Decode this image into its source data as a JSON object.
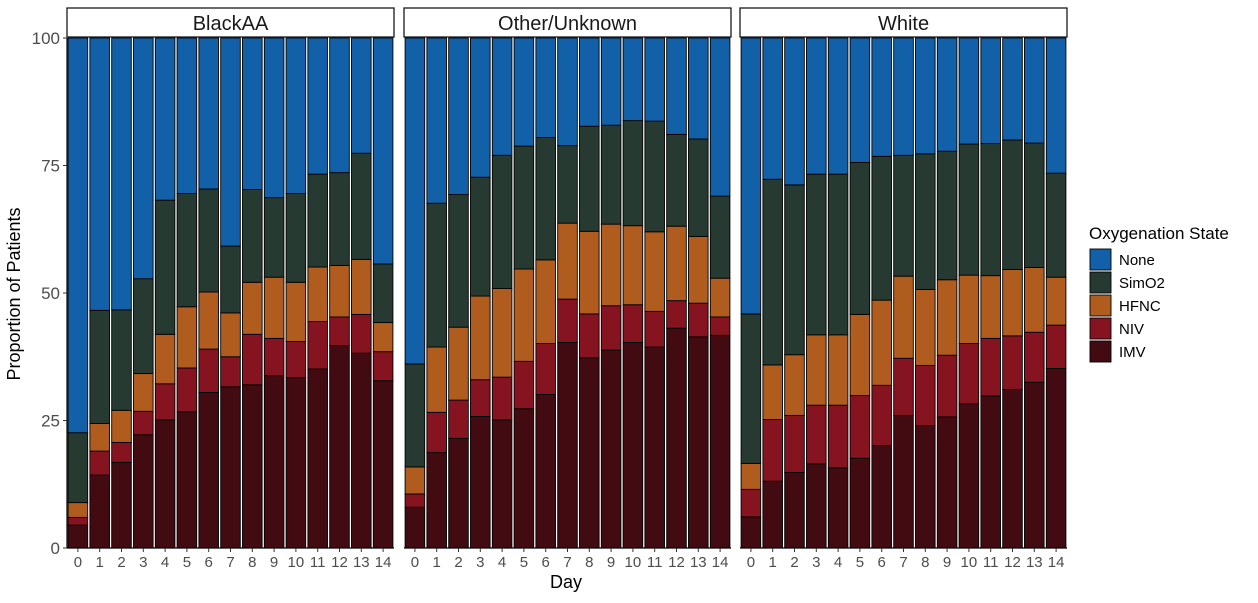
{
  "chart_data": {
    "type": "bar",
    "stacked": true,
    "facets": [
      "BlackAA",
      "Other/Unknown",
      "White"
    ],
    "categories": [
      "0",
      "1",
      "2",
      "3",
      "4",
      "5",
      "6",
      "7",
      "8",
      "9",
      "10",
      "11",
      "12",
      "13",
      "14"
    ],
    "xlabel": "Day",
    "ylabel": "Proportion of Patients",
    "ylim": [
      0,
      100
    ],
    "yticks": [
      "0",
      "25",
      "50",
      "75",
      "100"
    ],
    "legend": {
      "title": "Oxygenation State",
      "position": "right",
      "entries": [
        "None",
        "SimO2",
        "HFNC",
        "NIV",
        "IMV"
      ]
    },
    "colors": {
      "None": "#1261a8",
      "SimO2": "#263a31",
      "HFNC": "#b05c1e",
      "NIV": "#861420",
      "IMV": "#420b11"
    },
    "panels": [
      {
        "name": "BlackAA",
        "series": [
          {
            "name": "IMV",
            "values": [
              4.5,
              14.3,
              16.8,
              22.2,
              25.1,
              26.7,
              30.5,
              31.6,
              32.0,
              33.8,
              33.4,
              35.1,
              39.7,
              38.2,
              32.8
            ]
          },
          {
            "name": "NIV",
            "values": [
              1.5,
              4.7,
              3.9,
              4.6,
              7.1,
              8.6,
              8.5,
              5.9,
              9.9,
              7.3,
              7.1,
              9.3,
              5.6,
              7.6,
              5.7
            ]
          },
          {
            "name": "HFNC",
            "values": [
              2.9,
              5.4,
              6.3,
              7.4,
              9.7,
              12.0,
              11.2,
              8.6,
              10.2,
              12.0,
              11.6,
              10.7,
              10.1,
              10.8,
              5.7
            ]
          },
          {
            "name": "SimO2",
            "values": [
              13.7,
              22.2,
              19.7,
              18.6,
              26.3,
              22.2,
              20.2,
              13.1,
              18.2,
              15.6,
              17.4,
              18.2,
              18.2,
              20.8,
              11.5
            ]
          },
          {
            "name": "None",
            "values": [
              77.4,
              53.4,
              53.3,
              47.2,
              31.8,
              30.5,
              29.6,
              40.8,
              29.7,
              31.3,
              30.5,
              26.7,
              26.4,
              22.6,
              44.3
            ]
          }
        ]
      },
      {
        "name": "Other/Unknown",
        "series": [
          {
            "name": "IMV",
            "values": [
              8.0,
              18.7,
              21.5,
              25.8,
              25.1,
              27.3,
              30.1,
              40.3,
              37.3,
              38.8,
              40.3,
              39.4,
              43.1,
              41.4,
              41.7
            ]
          },
          {
            "name": "NIV",
            "values": [
              2.6,
              7.9,
              7.5,
              7.2,
              8.4,
              9.3,
              10.0,
              8.5,
              8.6,
              8.7,
              7.4,
              7.0,
              5.4,
              6.6,
              3.6
            ]
          },
          {
            "name": "HFNC",
            "values": [
              5.3,
              12.8,
              14.3,
              16.4,
              17.4,
              18.1,
              16.4,
              14.9,
              16.2,
              16.0,
              15.5,
              15.6,
              14.6,
              13.1,
              7.6
            ]
          },
          {
            "name": "SimO2",
            "values": [
              20.2,
              28.2,
              26.0,
              23.3,
              26.1,
              24.1,
              24.0,
              15.2,
              20.6,
              19.4,
              20.6,
              21.7,
              18.0,
              19.1,
              16.1
            ]
          },
          {
            "name": "None",
            "values": [
              63.9,
              32.4,
              30.7,
              27.3,
              23.0,
              21.2,
              19.5,
              21.1,
              17.3,
              17.1,
              16.2,
              16.3,
              18.9,
              19.8,
              31.0
            ]
          }
        ]
      },
      {
        "name": "White",
        "series": [
          {
            "name": "IMV",
            "values": [
              6.1,
              13.1,
              14.8,
              16.5,
              15.7,
              17.6,
              20.1,
              26.0,
              24.0,
              25.7,
              28.3,
              29.8,
              31.1,
              32.5,
              35.2
            ]
          },
          {
            "name": "NIV",
            "values": [
              5.4,
              12.1,
              11.2,
              11.5,
              12.3,
              12.3,
              11.8,
              11.2,
              11.8,
              12.1,
              11.8,
              11.3,
              10.5,
              9.8,
              8.5
            ]
          },
          {
            "name": "HFNC",
            "values": [
              5.1,
              10.7,
              11.9,
              13.8,
              13.8,
              15.9,
              16.7,
              16.1,
              14.9,
              14.8,
              13.4,
              12.3,
              13.0,
              12.7,
              9.4
            ]
          },
          {
            "name": "SimO2",
            "values": [
              29.3,
              36.4,
              33.3,
              31.5,
              31.5,
              29.8,
              28.2,
              23.7,
              26.6,
              25.2,
              25.7,
              25.9,
              25.4,
              24.4,
              20.4
            ]
          },
          {
            "name": "None",
            "values": [
              54.1,
              27.7,
              28.8,
              26.7,
              26.7,
              24.4,
              23.2,
              23.0,
              22.7,
              22.2,
              20.8,
              20.7,
              20.0,
              20.6,
              26.5
            ]
          }
        ]
      }
    ]
  }
}
